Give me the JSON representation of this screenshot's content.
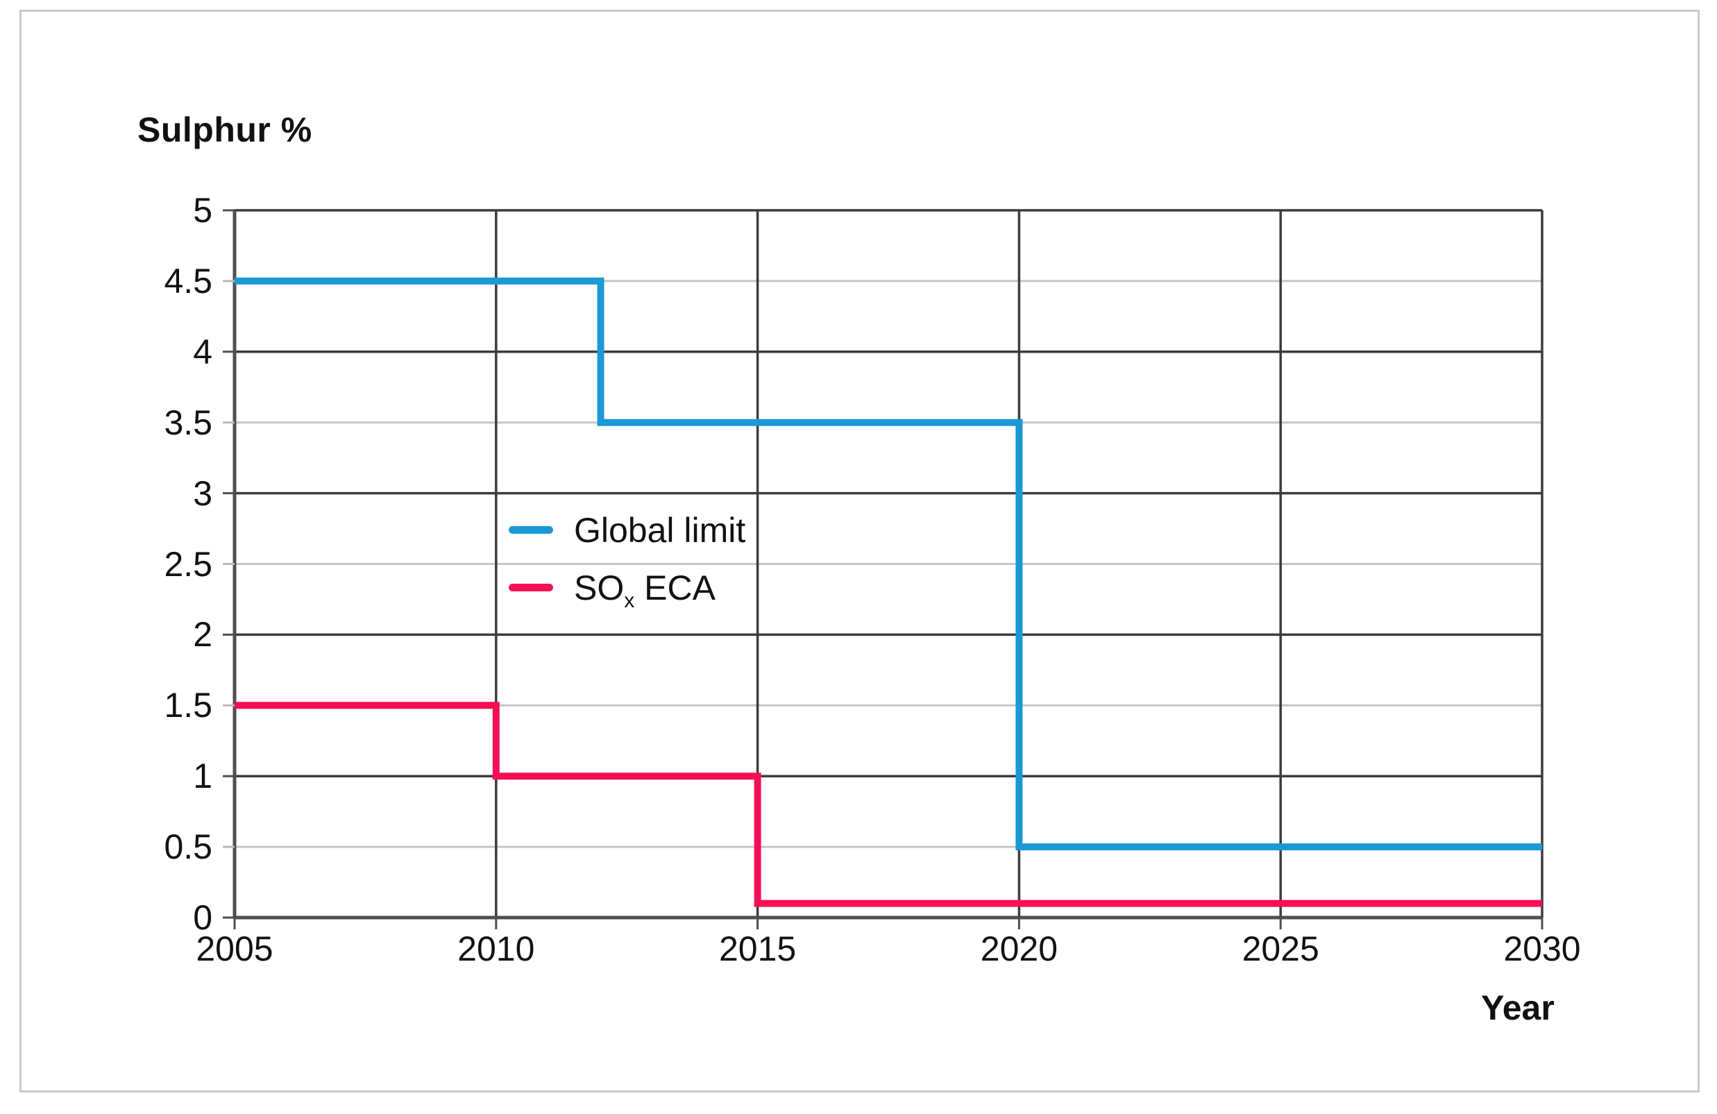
{
  "chart_data": {
    "type": "line",
    "subtype": "step",
    "title": "Sulphur %",
    "xlabel": "Year",
    "ylabel": "Sulphur %",
    "xlim": [
      2005,
      2030
    ],
    "ylim": [
      0,
      5
    ],
    "x_ticks": [
      2005,
      2010,
      2015,
      2020,
      2025,
      2030
    ],
    "y_ticks": [
      0,
      0.5,
      1,
      1.5,
      2,
      2.5,
      3,
      3.5,
      4,
      4.5,
      5
    ],
    "grid": {
      "major_color": "#3c3c3c",
      "minor_color": "#c6c6c6",
      "axis_color": "#4f4f4f",
      "minor_tick_color": "#b9b9b9"
    },
    "legend_position": "inside-center-left",
    "series": [
      {
        "name": "Global limit",
        "color": "#1b99d5",
        "points": [
          [
            2005,
            4.5
          ],
          [
            2012,
            4.5
          ],
          [
            2012,
            3.5
          ],
          [
            2020,
            3.5
          ],
          [
            2020,
            0.5
          ],
          [
            2030,
            0.5
          ]
        ]
      },
      {
        "name": "SOx ECA",
        "color": "#f50f54",
        "points": [
          [
            2005,
            1.5
          ],
          [
            2010,
            1.5
          ],
          [
            2010,
            1.0
          ],
          [
            2015,
            1.0
          ],
          [
            2015,
            0.1
          ],
          [
            2030,
            0.1
          ]
        ]
      }
    ]
  },
  "legend": {
    "global_limit": "Global limit",
    "sox_pre": "SO",
    "sox_sub": "x",
    "sox_post": " ECA"
  }
}
